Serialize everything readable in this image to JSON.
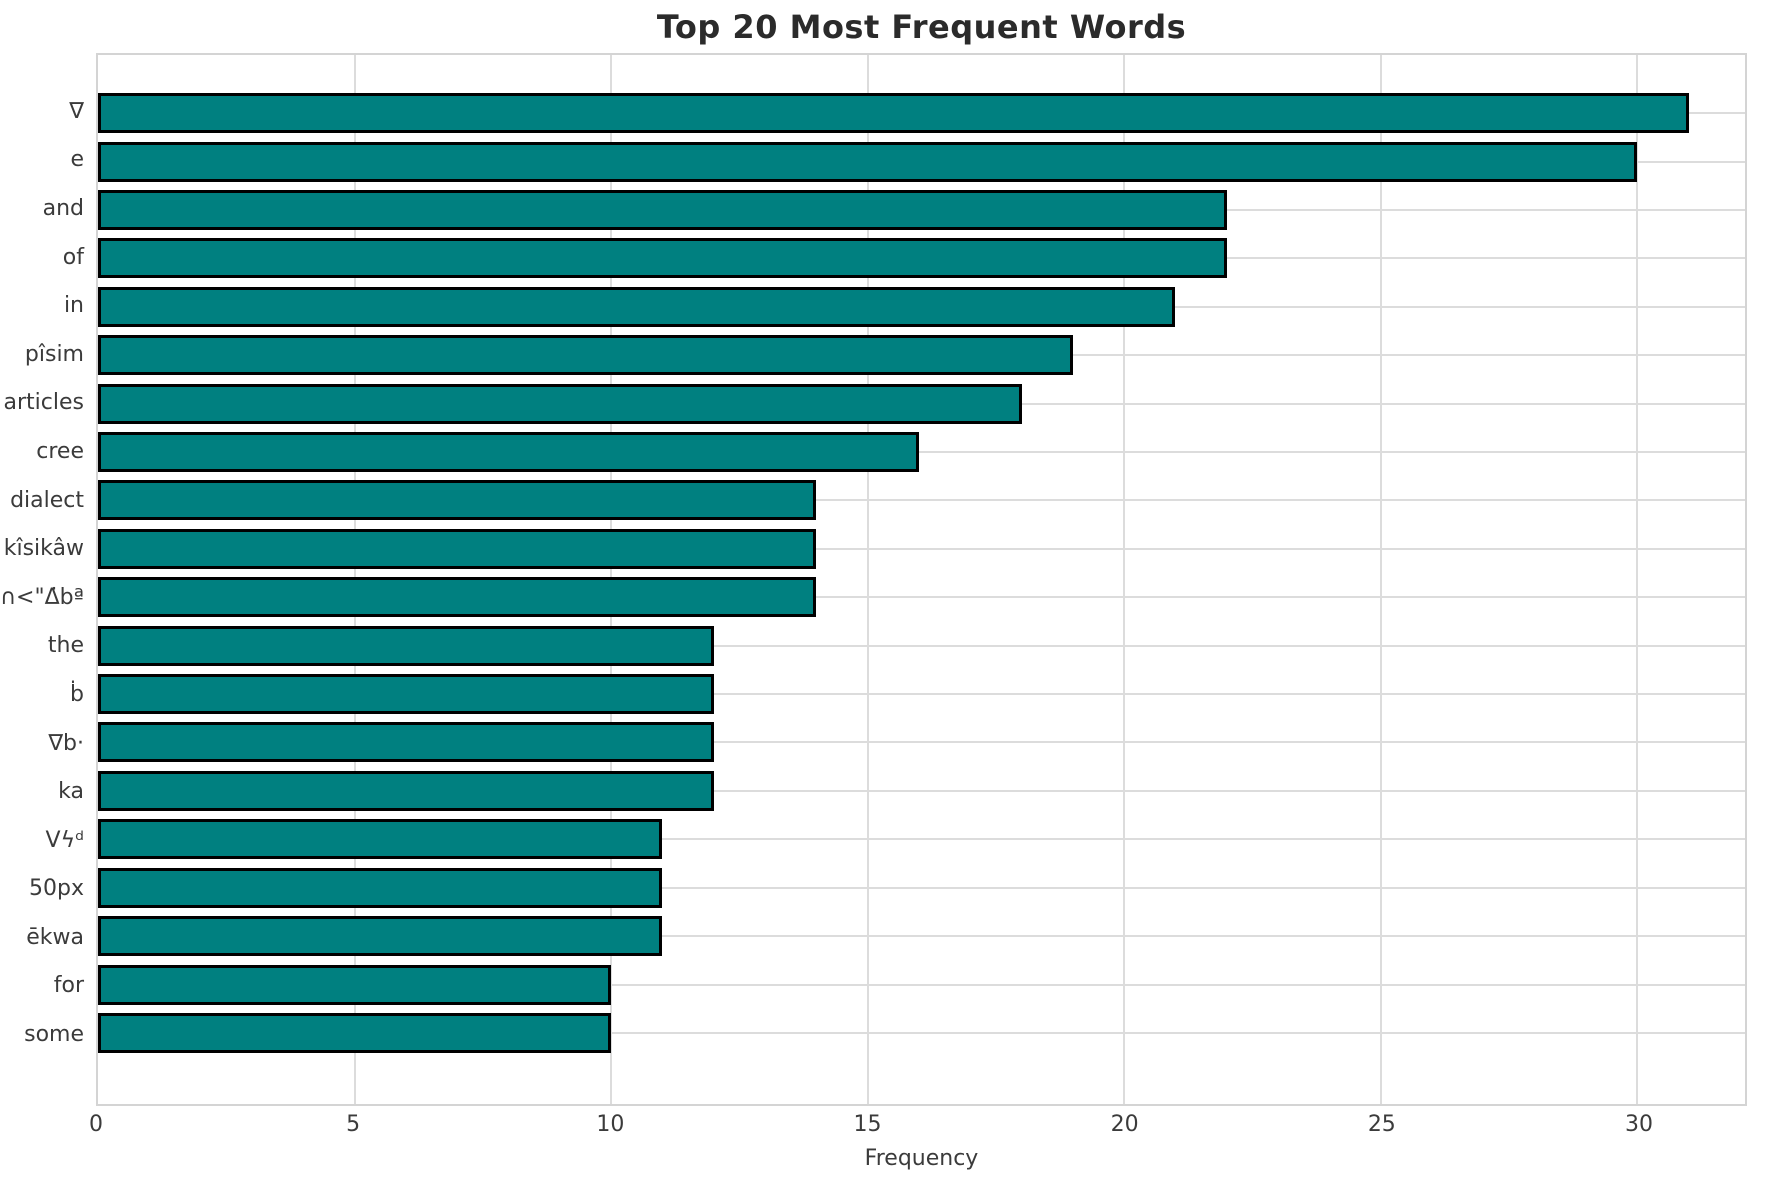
{
  "chart_data": {
    "type": "bar",
    "orientation": "horizontal",
    "title": "Top 20 Most Frequent Words",
    "xlabel": "Frequency",
    "ylabel": "",
    "categories": [
      "∇",
      "e",
      "and",
      "of",
      "in",
      "pîsim",
      "articles",
      "cree",
      "dialect",
      "kîsikâw",
      "∩<\"Δ̇bª",
      "the",
      "ḃ",
      "∇b·",
      "ka",
      "Vϟᵈ",
      "50px",
      "ēkwa",
      "for",
      "some"
    ],
    "values": [
      31,
      30,
      22,
      22,
      21,
      19,
      18,
      16,
      14,
      14,
      14,
      12,
      12,
      12,
      12,
      11,
      11,
      11,
      10,
      10
    ],
    "xlim": [
      0,
      32.1
    ],
    "xticks": [
      0,
      5,
      10,
      15,
      20,
      25,
      30
    ],
    "grid": true,
    "legend": false,
    "bar_color": "#008080",
    "bar_edge_color": "#000000"
  },
  "colors": {
    "background": "#ffffff",
    "bar_fill": "#008080",
    "bar_edge": "#000000",
    "grid": "#dcdcdc",
    "spine": "#d4d4d4",
    "text": "#3b3b3b",
    "title": "#2b2b2b"
  }
}
